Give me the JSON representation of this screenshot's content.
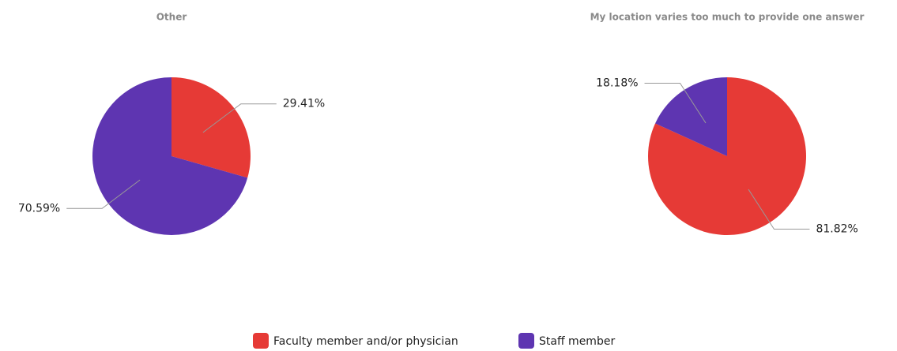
{
  "chart_data": [
    {
      "type": "pie",
      "title": "Other",
      "categories": [
        "Faculty member and/or physician",
        "Staff member"
      ],
      "values": [
        29.41,
        70.59
      ],
      "value_labels": [
        "29.41%",
        "70.59%"
      ],
      "colors": [
        "#e63a36",
        "#5e35b1"
      ]
    },
    {
      "type": "pie",
      "title": "My location varies too much to provide one answer",
      "categories": [
        "Faculty member and/or physician",
        "Staff member"
      ],
      "values": [
        81.82,
        18.18
      ],
      "value_labels": [
        "81.82%",
        "18.18%"
      ],
      "colors": [
        "#e63a36",
        "#5e35b1"
      ]
    }
  ]
}
